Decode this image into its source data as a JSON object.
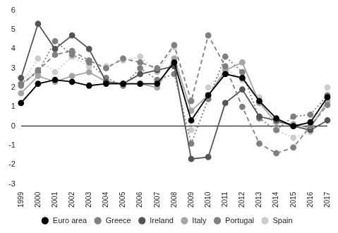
{
  "chart_data": {
    "type": "line",
    "categories": [
      "1999",
      "2000",
      "2001",
      "2002",
      "2003",
      "2004",
      "2005",
      "2006",
      "2007",
      "2008",
      "2009",
      "2010",
      "2011",
      "2012",
      "2013",
      "2014",
      "2015",
      "2016",
      "2017"
    ],
    "series": [
      {
        "name": "Euro area",
        "color": "#000000",
        "line_style": "solid",
        "marker": "circle",
        "values": [
          1.2,
          2.2,
          2.4,
          2.3,
          2.1,
          2.2,
          2.2,
          2.2,
          2.2,
          3.3,
          0.3,
          1.6,
          2.7,
          2.5,
          1.3,
          0.4,
          0.0,
          0.2,
          1.5
        ]
      },
      {
        "name": "Greece",
        "color": "#808080",
        "line_style": "dashed",
        "marker": "circle",
        "values": [
          2.1,
          2.9,
          3.7,
          3.9,
          3.4,
          3.0,
          3.5,
          3.3,
          3.0,
          4.2,
          1.3,
          4.7,
          3.1,
          1.0,
          -0.9,
          -1.4,
          -1.1,
          0.0,
          1.1
        ]
      },
      {
        "name": "Ireland",
        "color": "#555555",
        "line_style": "solid",
        "marker": "circle",
        "values": [
          2.5,
          5.3,
          4.0,
          4.7,
          4.0,
          2.3,
          2.2,
          2.7,
          2.9,
          3.1,
          -1.7,
          -1.6,
          1.2,
          1.9,
          0.5,
          0.3,
          0.0,
          -0.2,
          0.3
        ]
      },
      {
        "name": "Italy",
        "color": "#a6a6a6",
        "line_style": "solid",
        "marker": "circle",
        "values": [
          1.7,
          2.6,
          2.3,
          2.6,
          2.8,
          2.3,
          2.2,
          2.2,
          2.0,
          3.5,
          0.8,
          1.6,
          2.9,
          3.3,
          1.2,
          0.2,
          0.1,
          -0.1,
          1.3
        ]
      },
      {
        "name": "Portugal",
        "color": "#808080",
        "line_style": "dotted",
        "marker": "circle",
        "values": [
          2.2,
          2.8,
          4.4,
          3.7,
          3.3,
          2.5,
          2.1,
          3.0,
          2.4,
          2.7,
          -0.9,
          1.4,
          3.6,
          2.8,
          0.4,
          -0.2,
          0.5,
          0.6,
          1.6
        ]
      },
      {
        "name": "Spain",
        "color": "#cccccc",
        "line_style": "dotted",
        "marker": "circle",
        "values": [
          2.2,
          3.5,
          2.8,
          3.6,
          3.1,
          3.1,
          3.4,
          3.6,
          2.8,
          4.1,
          -0.2,
          2.0,
          3.0,
          2.4,
          1.5,
          -0.2,
          -0.6,
          -0.3,
          2.0
        ]
      }
    ],
    "ylim": [
      -3,
      6
    ],
    "yticks": [
      -3,
      -2,
      -1,
      0,
      1,
      2,
      3,
      4,
      5,
      6
    ],
    "grid": false,
    "legend": "bottom"
  }
}
